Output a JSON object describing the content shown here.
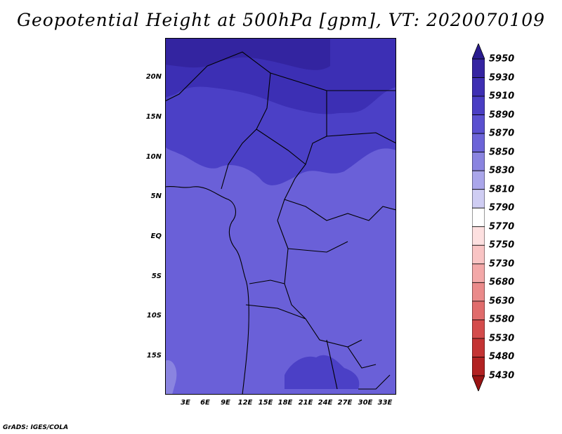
{
  "title": "Geopotential Height at 500hPa [gpm], VT: 2020070109",
  "footer": "GrADS: IGES/COLA",
  "map": {
    "lat_labels": [
      "20N",
      "15N",
      "10N",
      "5N",
      "EQ",
      "5S",
      "10S",
      "15S"
    ],
    "lon_labels": [
      "3E",
      "6E",
      "9E",
      "12E",
      "15E",
      "18E",
      "21E",
      "24E",
      "27E",
      "30E",
      "33E"
    ],
    "lon_range": [
      0,
      34
    ],
    "lat_range": [
      -20,
      24
    ]
  },
  "colorbar": {
    "labels": [
      "5950",
      "5930",
      "5910",
      "5890",
      "5870",
      "5850",
      "5830",
      "5810",
      "5790",
      "5770",
      "5750",
      "5730",
      "5680",
      "5630",
      "5580",
      "5530",
      "5480",
      "5430"
    ],
    "colors": [
      "#2a1c8f",
      "#3524a2",
      "#3e2fb3",
      "#4a3ec4",
      "#5a50d0",
      "#6c64d8",
      "#8a84e0",
      "#aaa6ea",
      "#cfcdf3",
      "#ffffff",
      "#fde0e0",
      "#f9c4c4",
      "#f3a8a8",
      "#ea8a8a",
      "#e06c6c",
      "#d44c4c",
      "#c43434",
      "#b22222",
      "#9a1414"
    ]
  }
}
